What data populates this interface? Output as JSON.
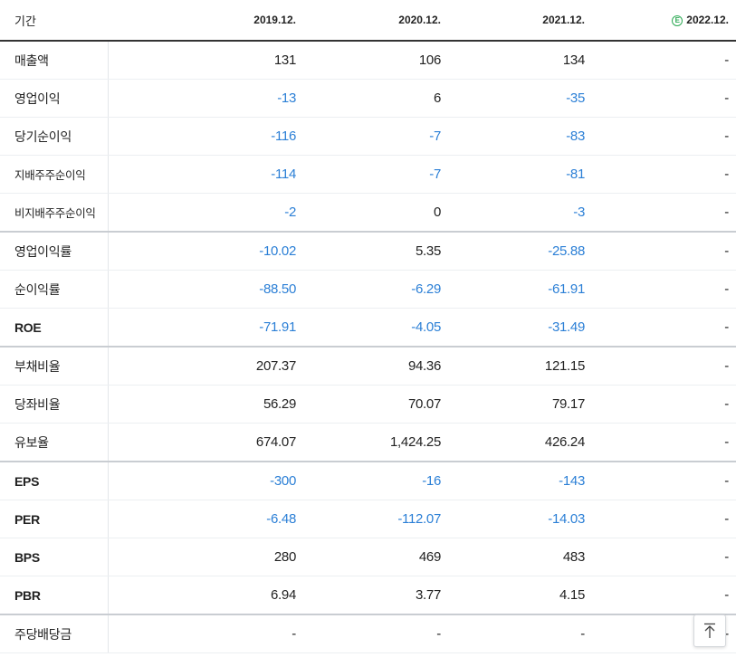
{
  "header": {
    "period_label": "기간",
    "columns": [
      "2019.12.",
      "2020.12.",
      "2021.12.",
      "2022.12."
    ],
    "estimate_badge": "E"
  },
  "rows": [
    {
      "label": "매출액",
      "values": [
        "131",
        "106",
        "134",
        "-"
      ]
    },
    {
      "label": "영업이익",
      "values": [
        "-13",
        "6",
        "-35",
        "-"
      ]
    },
    {
      "label": "당기순이익",
      "values": [
        "-116",
        "-7",
        "-83",
        "-"
      ]
    },
    {
      "label": "지배주주순이익",
      "values": [
        "-114",
        "-7",
        "-81",
        "-"
      ]
    },
    {
      "label": "비지배주주순이익",
      "values": [
        "-2",
        "0",
        "-3",
        "-"
      ]
    },
    {
      "label": "영업이익률",
      "values": [
        "-10.02",
        "5.35",
        "-25.88",
        "-"
      ]
    },
    {
      "label": "순이익률",
      "values": [
        "-88.50",
        "-6.29",
        "-61.91",
        "-"
      ]
    },
    {
      "label": "ROE",
      "values": [
        "-71.91",
        "-4.05",
        "-31.49",
        "-"
      ]
    },
    {
      "label": "부채비율",
      "values": [
        "207.37",
        "94.36",
        "121.15",
        "-"
      ]
    },
    {
      "label": "당좌비율",
      "values": [
        "56.29",
        "70.07",
        "79.17",
        "-"
      ]
    },
    {
      "label": "유보율",
      "values": [
        "674.07",
        "1,424.25",
        "426.24",
        "-"
      ]
    },
    {
      "label": "EPS",
      "values": [
        "-300",
        "-16",
        "-143",
        "-"
      ]
    },
    {
      "label": "PER",
      "values": [
        "-6.48",
        "-112.07",
        "-14.03",
        "-"
      ]
    },
    {
      "label": "BPS",
      "values": [
        "280",
        "469",
        "483",
        "-"
      ]
    },
    {
      "label": "PBR",
      "values": [
        "6.94",
        "3.77",
        "4.15",
        "-"
      ]
    },
    {
      "label": "주당배당금",
      "values": [
        "-",
        "-",
        "-",
        "-"
      ]
    }
  ],
  "colors": {
    "negative": "#2b7fd6",
    "estimate": "#2eaa55"
  },
  "scroll_top_icon": "arrow-up-to-top-icon"
}
